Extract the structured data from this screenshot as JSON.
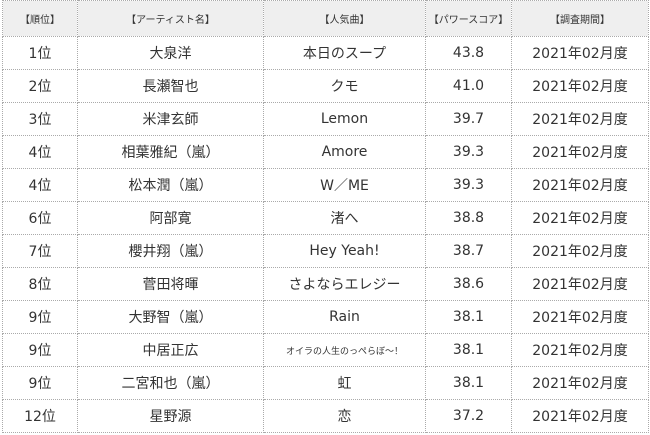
{
  "table": {
    "header": [
      "【順位】",
      "【アーティスト名】",
      "【人気曲】",
      "【パワースコア】",
      "【調査期間】"
    ],
    "rows": [
      [
        "1位",
        "大泉洋",
        "本日のスープ",
        "43.8",
        "2021年02月度"
      ],
      [
        "2位",
        "長瀬智也",
        "クモ",
        "41.0",
        "2021年02月度"
      ],
      [
        "3位",
        "米津玄師",
        "Lemon",
        "39.7",
        "2021年02月度"
      ],
      [
        "4位",
        "相葉雅紀（嵐）",
        "Amore",
        "39.3",
        "2021年02月度"
      ],
      [
        "4位",
        "松本潤（嵐）",
        "W／ME",
        "39.3",
        "2021年02月度"
      ],
      [
        "6位",
        "阿部寛",
        "渚へ",
        "38.8",
        "2021年02月度"
      ],
      [
        "7位",
        "櫻井翔（嵐）",
        "Hey Yeah!",
        "38.7",
        "2021年02月度"
      ],
      [
        "8位",
        "菅田将暉",
        "さよならエレジー",
        "38.6",
        "2021年02月度"
      ],
      [
        "9位",
        "大野智（嵐）",
        "Rain",
        "38.1",
        "2021年02月度"
      ],
      [
        "9位",
        "中居正広",
        "オイラの人生のっぺらぼ〜！",
        "38.1",
        "2021年02月度"
      ],
      [
        "9位",
        "二宮和也（嵐）",
        "虹",
        "38.1",
        "2021年02月度"
      ],
      [
        "12位",
        "星野源",
        "恋",
        "37.2",
        "2021年02月度"
      ]
    ]
  }
}
